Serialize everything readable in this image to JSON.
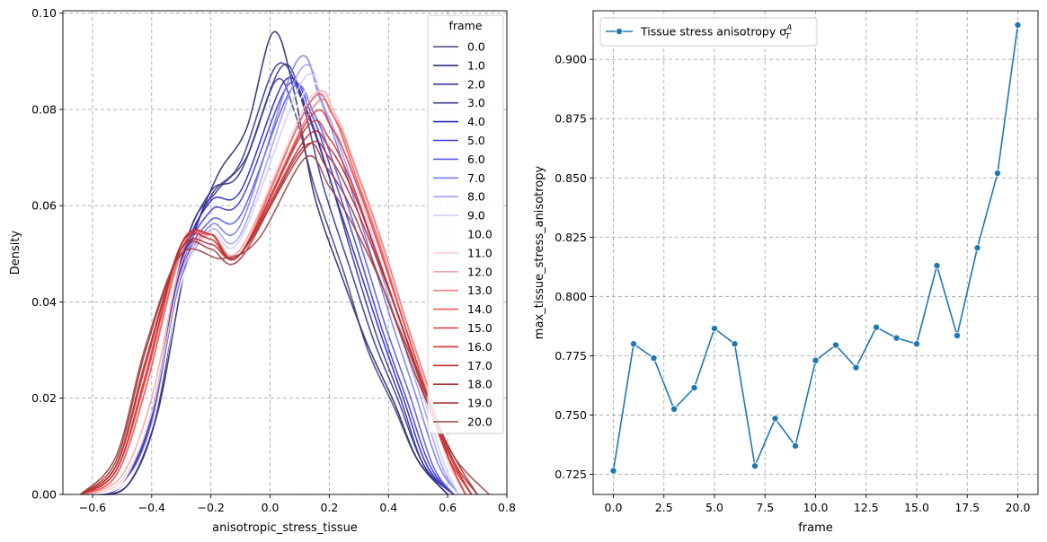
{
  "chart_data": [
    {
      "type": "line",
      "chart_kind": "kde",
      "xlabel": "anisotropic_stress_tissue",
      "ylabel": "Density",
      "xlim": [
        -0.7,
        0.8
      ],
      "ylim": [
        0,
        0.1005
      ],
      "xticks": [
        "−0.6",
        "−0.4",
        "−0.2",
        "0.0",
        "0.2",
        "0.4",
        "0.6",
        "0.8"
      ],
      "xtick_values": [
        -0.6,
        -0.4,
        -0.2,
        0.0,
        0.2,
        0.4,
        0.6,
        0.8
      ],
      "yticks": [
        "0.00",
        "0.02",
        "0.04",
        "0.06",
        "0.08",
        "0.10"
      ],
      "ytick_values": [
        0,
        0.02,
        0.04,
        0.06,
        0.08,
        0.1
      ],
      "grid": true,
      "legend": {
        "title": "frame",
        "placement": "top-right"
      },
      "series": [
        {
          "name": "0.0",
          "color": "#45457f",
          "start": -0.6,
          "stop": 0.6,
          "x": [
            -0.6,
            -0.48,
            -0.38,
            -0.28,
            -0.18,
            -0.08,
            0.02,
            0.08,
            0.15,
            0.25,
            0.33,
            0.42,
            0.5,
            0.6
          ],
          "y": [
            0,
            0.002,
            0.018,
            0.053,
            0.063,
            0.07,
            0.086,
            0.08,
            0.064,
            0.046,
            0.03,
            0.018,
            0.007,
            0
          ]
        },
        {
          "name": "1.0",
          "color": "#2d2d78",
          "start": -0.6,
          "stop": 0.6,
          "x": [
            -0.6,
            -0.48,
            -0.38,
            -0.28,
            -0.18,
            -0.08,
            0.01,
            0.08,
            0.15,
            0.25,
            0.33,
            0.42,
            0.5,
            0.6
          ],
          "y": [
            0,
            0.002,
            0.017,
            0.049,
            0.066,
            0.076,
            0.096,
            0.084,
            0.062,
            0.044,
            0.031,
            0.019,
            0.007,
            0
          ]
        },
        {
          "name": "2.0",
          "color": "#3a3aa0",
          "start": -0.62,
          "stop": 0.62,
          "x": [
            -0.62,
            -0.5,
            -0.4,
            -0.3,
            -0.2,
            -0.1,
            0.02,
            0.1,
            0.18,
            0.27,
            0.35,
            0.43,
            0.52,
            0.62
          ],
          "y": [
            0,
            0.002,
            0.017,
            0.047,
            0.062,
            0.069,
            0.089,
            0.083,
            0.064,
            0.047,
            0.032,
            0.02,
            0.006,
            0
          ]
        },
        {
          "name": "3.0",
          "color": "#3a3a8c",
          "start": -0.62,
          "stop": 0.62,
          "x": [
            -0.62,
            -0.5,
            -0.4,
            -0.3,
            -0.2,
            -0.1,
            0.04,
            0.12,
            0.2,
            0.28,
            0.36,
            0.44,
            0.52,
            0.62
          ],
          "y": [
            0,
            0.002,
            0.016,
            0.049,
            0.063,
            0.067,
            0.089,
            0.08,
            0.066,
            0.049,
            0.033,
            0.02,
            0.006,
            0
          ]
        },
        {
          "name": "4.0",
          "color": "#2a2ac4",
          "start": -0.62,
          "stop": 0.62,
          "x": [
            -0.62,
            -0.5,
            -0.4,
            -0.3,
            -0.2,
            -0.1,
            0.05,
            0.13,
            0.21,
            0.29,
            0.37,
            0.45,
            0.53,
            0.62
          ],
          "y": [
            0,
            0.002,
            0.016,
            0.048,
            0.061,
            0.063,
            0.086,
            0.079,
            0.064,
            0.049,
            0.034,
            0.02,
            0.006,
            0
          ]
        },
        {
          "name": "5.0",
          "color": "#3e3ed8",
          "start": -0.62,
          "stop": 0.62,
          "x": [
            -0.62,
            -0.5,
            -0.4,
            -0.3,
            -0.2,
            -0.1,
            0.06,
            0.14,
            0.22,
            0.3,
            0.38,
            0.46,
            0.54,
            0.62
          ],
          "y": [
            0,
            0.002,
            0.016,
            0.047,
            0.059,
            0.061,
            0.085,
            0.079,
            0.065,
            0.05,
            0.034,
            0.02,
            0.006,
            0
          ]
        },
        {
          "name": "6.0",
          "color": "#5a5ae8",
          "start": -0.62,
          "stop": 0.62,
          "x": [
            -0.62,
            -0.5,
            -0.4,
            -0.3,
            -0.2,
            -0.1,
            0.07,
            0.15,
            0.23,
            0.31,
            0.39,
            0.47,
            0.55,
            0.62
          ],
          "y": [
            0,
            0.002,
            0.015,
            0.046,
            0.057,
            0.058,
            0.084,
            0.079,
            0.066,
            0.051,
            0.035,
            0.021,
            0.006,
            0
          ]
        },
        {
          "name": "7.0",
          "color": "#7a7aef",
          "start": -0.62,
          "stop": 0.64,
          "x": [
            -0.62,
            -0.5,
            -0.4,
            -0.3,
            -0.2,
            -0.1,
            0.09,
            0.17,
            0.25,
            0.33,
            0.41,
            0.49,
            0.57,
            0.64
          ],
          "y": [
            0,
            0.002,
            0.014,
            0.045,
            0.056,
            0.056,
            0.09,
            0.082,
            0.068,
            0.052,
            0.036,
            0.021,
            0.006,
            0
          ]
        },
        {
          "name": "8.0",
          "color": "#a0a0f5",
          "start": -0.62,
          "stop": 0.64,
          "x": [
            -0.62,
            -0.5,
            -0.4,
            -0.3,
            -0.2,
            -0.1,
            0.1,
            0.18,
            0.26,
            0.34,
            0.42,
            0.5,
            0.58,
            0.64
          ],
          "y": [
            0,
            0.002,
            0.014,
            0.044,
            0.055,
            0.054,
            0.088,
            0.081,
            0.068,
            0.053,
            0.037,
            0.022,
            0.006,
            0
          ]
        },
        {
          "name": "9.0",
          "color": "#cfcff7",
          "start": -0.62,
          "stop": 0.64,
          "x": [
            -0.62,
            -0.5,
            -0.4,
            -0.3,
            -0.2,
            -0.1,
            0.11,
            0.19,
            0.27,
            0.35,
            0.43,
            0.51,
            0.59,
            0.64
          ],
          "y": [
            0,
            0.002,
            0.014,
            0.044,
            0.054,
            0.053,
            0.086,
            0.08,
            0.068,
            0.053,
            0.037,
            0.022,
            0.006,
            0
          ]
        },
        {
          "name": "10.0",
          "color": "#ffffff",
          "start": -0.62,
          "stop": 0.64,
          "x": [
            -0.62,
            -0.5,
            -0.4,
            -0.3,
            -0.2,
            -0.1,
            0.12,
            0.2,
            0.28,
            0.36,
            0.44,
            0.52,
            0.6,
            0.64
          ],
          "y": [
            0,
            0.002,
            0.014,
            0.044,
            0.054,
            0.052,
            0.084,
            0.079,
            0.067,
            0.053,
            0.037,
            0.022,
            0.006,
            0
          ]
        },
        {
          "name": "11.0",
          "color": "#f7cfcf",
          "start": -0.62,
          "stop": 0.66,
          "x": [
            -0.62,
            -0.5,
            -0.4,
            -0.3,
            -0.2,
            -0.1,
            0.13,
            0.21,
            0.29,
            0.37,
            0.45,
            0.53,
            0.6,
            0.66
          ],
          "y": [
            0,
            0.003,
            0.017,
            0.046,
            0.054,
            0.051,
            0.082,
            0.079,
            0.067,
            0.053,
            0.037,
            0.022,
            0.007,
            0
          ]
        },
        {
          "name": "12.0",
          "color": "#f5a5a5",
          "start": -0.62,
          "stop": 0.66,
          "x": [
            -0.62,
            -0.5,
            -0.4,
            -0.3,
            -0.2,
            -0.1,
            0.14,
            0.22,
            0.3,
            0.38,
            0.46,
            0.54,
            0.6,
            0.66
          ],
          "y": [
            0,
            0.004,
            0.02,
            0.048,
            0.054,
            0.051,
            0.082,
            0.079,
            0.066,
            0.052,
            0.036,
            0.021,
            0.008,
            0
          ]
        },
        {
          "name": "13.0",
          "color": "#f27d7d",
          "start": -0.64,
          "stop": 0.66,
          "x": [
            -0.64,
            -0.52,
            -0.42,
            -0.3,
            -0.2,
            -0.1,
            0.14,
            0.22,
            0.3,
            0.38,
            0.46,
            0.54,
            0.6,
            0.66
          ],
          "y": [
            0,
            0.004,
            0.022,
            0.05,
            0.054,
            0.05,
            0.08,
            0.078,
            0.066,
            0.052,
            0.036,
            0.021,
            0.008,
            0
          ]
        },
        {
          "name": "14.0",
          "color": "#ef5a5a",
          "start": -0.64,
          "stop": 0.66,
          "x": [
            -0.64,
            -0.52,
            -0.42,
            -0.3,
            -0.2,
            -0.1,
            0.13,
            0.21,
            0.29,
            0.37,
            0.45,
            0.53,
            0.6,
            0.66
          ],
          "y": [
            0,
            0.004,
            0.022,
            0.051,
            0.054,
            0.05,
            0.081,
            0.079,
            0.066,
            0.052,
            0.036,
            0.021,
            0.008,
            0
          ]
        },
        {
          "name": "15.0",
          "color": "#e63c3c",
          "start": -0.64,
          "stop": 0.66,
          "x": [
            -0.64,
            -0.52,
            -0.42,
            -0.3,
            -0.2,
            -0.1,
            0.13,
            0.21,
            0.29,
            0.37,
            0.45,
            0.53,
            0.6,
            0.66
          ],
          "y": [
            0,
            0.005,
            0.024,
            0.052,
            0.054,
            0.05,
            0.078,
            0.076,
            0.065,
            0.051,
            0.036,
            0.021,
            0.008,
            0
          ]
        },
        {
          "name": "16.0",
          "color": "#d23232",
          "start": -0.64,
          "stop": 0.68,
          "x": [
            -0.64,
            -0.52,
            -0.42,
            -0.3,
            -0.2,
            -0.1,
            0.12,
            0.2,
            0.28,
            0.36,
            0.44,
            0.52,
            0.6,
            0.68
          ],
          "y": [
            0,
            0.005,
            0.025,
            0.052,
            0.054,
            0.05,
            0.076,
            0.074,
            0.064,
            0.05,
            0.036,
            0.021,
            0.008,
            0
          ]
        },
        {
          "name": "17.0",
          "color": "#c42a2a",
          "start": -0.64,
          "stop": 0.68,
          "x": [
            -0.64,
            -0.52,
            -0.42,
            -0.3,
            -0.2,
            -0.1,
            0.12,
            0.2,
            0.28,
            0.36,
            0.44,
            0.52,
            0.6,
            0.68
          ],
          "y": [
            0,
            0.006,
            0.027,
            0.052,
            0.053,
            0.05,
            0.074,
            0.072,
            0.063,
            0.05,
            0.036,
            0.022,
            0.009,
            0
          ]
        },
        {
          "name": "18.0",
          "color": "#b33232",
          "start": -0.64,
          "stop": 0.7,
          "x": [
            -0.64,
            -0.52,
            -0.42,
            -0.3,
            -0.2,
            -0.1,
            0.12,
            0.2,
            0.28,
            0.36,
            0.44,
            0.52,
            0.62,
            0.7
          ],
          "y": [
            0,
            0.006,
            0.028,
            0.051,
            0.052,
            0.05,
            0.072,
            0.07,
            0.061,
            0.049,
            0.036,
            0.022,
            0.007,
            0
          ]
        },
        {
          "name": "19.0",
          "color": "#a83838",
          "start": -0.64,
          "stop": 0.7,
          "x": [
            -0.64,
            -0.52,
            -0.42,
            -0.3,
            -0.2,
            -0.1,
            0.11,
            0.19,
            0.27,
            0.35,
            0.43,
            0.51,
            0.62,
            0.7
          ],
          "y": [
            0,
            0.007,
            0.03,
            0.051,
            0.051,
            0.049,
            0.072,
            0.068,
            0.06,
            0.048,
            0.035,
            0.022,
            0.008,
            0
          ]
        },
        {
          "name": "20.0",
          "color": "#a04444",
          "start": -0.64,
          "stop": 0.74,
          "x": [
            -0.64,
            -0.52,
            -0.42,
            -0.3,
            -0.16,
            -0.04,
            0.12,
            0.2,
            0.28,
            0.36,
            0.44,
            0.52,
            0.62,
            0.74
          ],
          "y": [
            0,
            0.008,
            0.031,
            0.05,
            0.049,
            0.053,
            0.07,
            0.064,
            0.056,
            0.046,
            0.034,
            0.022,
            0.008,
            0
          ]
        }
      ]
    },
    {
      "type": "line",
      "xlabel": "frame",
      "ylabel": "max_tissue_stress_anisotropy",
      "xlim": [
        -1.0,
        21.0
      ],
      "ylim": [
        0.7165,
        0.9205
      ],
      "xticks": [
        "0.0",
        "2.5",
        "5.0",
        "7.5",
        "10.0",
        "12.5",
        "15.0",
        "17.5",
        "20.0"
      ],
      "xtick_values": [
        0,
        2.5,
        5,
        7.5,
        10,
        12.5,
        15,
        17.5,
        20
      ],
      "yticks": [
        "0.725",
        "0.750",
        "0.775",
        "0.800",
        "0.825",
        "0.850",
        "0.875",
        "0.900"
      ],
      "ytick_values": [
        0.725,
        0.75,
        0.775,
        0.8,
        0.825,
        0.85,
        0.875,
        0.9
      ],
      "grid": true,
      "legend": {
        "placement": "top-left"
      },
      "series": [
        {
          "name": "Tissue stress anisotropy σ",
          "name_sup": "A",
          "name_sub": "T",
          "color": "#1f77b4",
          "marker": "o",
          "x": [
            0,
            1,
            2,
            3,
            4,
            5,
            6,
            7,
            8,
            9,
            10,
            11,
            12,
            13,
            14,
            15,
            16,
            17,
            18,
            19,
            20
          ],
          "y": [
            0.7265,
            0.78,
            0.774,
            0.7525,
            0.7615,
            0.7865,
            0.78,
            0.7285,
            0.7485,
            0.737,
            0.773,
            0.7795,
            0.77,
            0.787,
            0.7825,
            0.78,
            0.813,
            0.7835,
            0.8205,
            0.852,
            0.9145
          ]
        }
      ]
    }
  ]
}
